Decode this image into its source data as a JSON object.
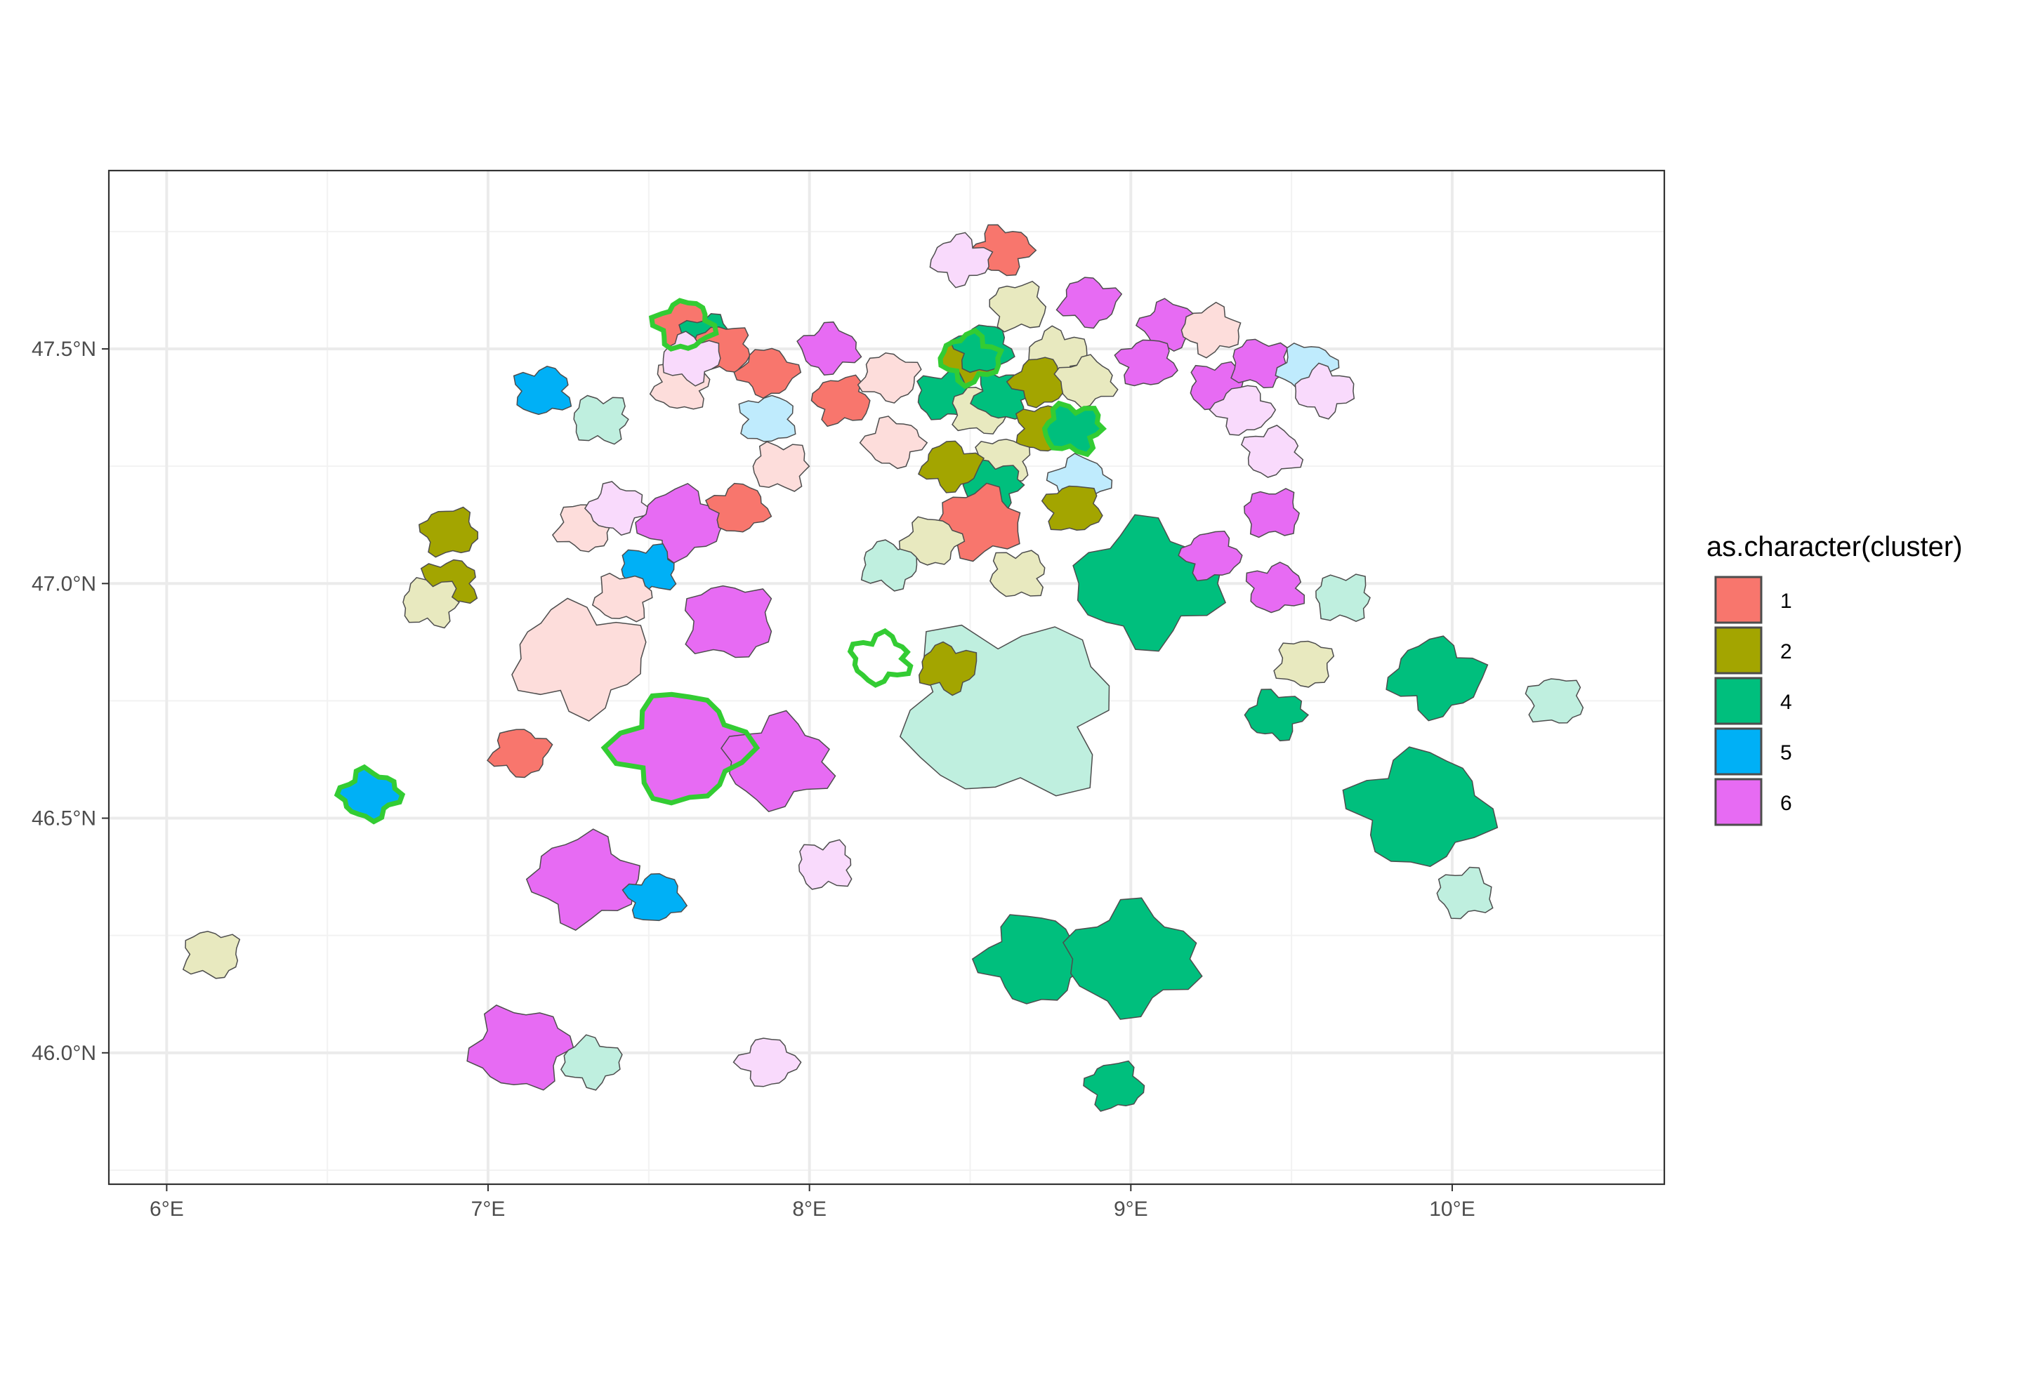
{
  "map": {
    "x_axis": {
      "ticks": [
        "6°E",
        "7°E",
        "8°E",
        "9°E",
        "10°E"
      ],
      "values": [
        6,
        7,
        8,
        9,
        10
      ]
    },
    "y_axis": {
      "ticks": [
        "47.5°N",
        "47.0°N",
        "46.5°N",
        "46.0°N"
      ],
      "values": [
        47.5,
        47.0,
        46.5,
        46.0
      ]
    },
    "x_range": [
      5.82,
      10.66
    ],
    "y_range": [
      45.72,
      47.88
    ],
    "grid": true,
    "highlight_color": "#33cc33"
  },
  "legend": {
    "title": "as.character(cluster)",
    "placement": "right",
    "items": [
      {
        "label": "1",
        "color": "#F8766D"
      },
      {
        "label": "2",
        "color": "#A3A500"
      },
      {
        "label": "4",
        "color": "#00BF7D"
      },
      {
        "label": "5",
        "color": "#00B0F6"
      },
      {
        "label": "6",
        "color": "#E76BF3"
      }
    ]
  },
  "chart_data": {
    "type": "choropleth",
    "legend_title": "as.character(cluster)",
    "clusters": [
      "1",
      "2",
      "4",
      "5",
      "6"
    ],
    "cluster_colors": {
      "1": "#F8766D",
      "2": "#A3A500",
      "4": "#00BF7D",
      "5": "#00B0F6",
      "6": "#E76BF3"
    },
    "regions": [
      {
        "id": "r01",
        "cluster": "1",
        "shade": "solid",
        "lon": 8.6,
        "lat": 47.71
      },
      {
        "id": "r02",
        "cluster": "6",
        "shade": "faded",
        "lon": 8.47,
        "lat": 47.69
      },
      {
        "id": "r03",
        "cluster": "1",
        "shade": "solid",
        "lon": 7.61,
        "lat": 47.55,
        "highlight": true
      },
      {
        "id": "r04",
        "cluster": "4",
        "shade": "solid",
        "lon": 7.68,
        "lat": 47.52
      },
      {
        "id": "r05",
        "cluster": "1",
        "shade": "solid",
        "lon": 7.73,
        "lat": 47.5
      },
      {
        "id": "r06",
        "cluster": "1",
        "shade": "faded",
        "lon": 7.6,
        "lat": 47.42
      },
      {
        "id": "r07",
        "cluster": "6",
        "shade": "faded",
        "lon": 7.63,
        "lat": 47.48
      },
      {
        "id": "r08",
        "cluster": "1",
        "shade": "solid",
        "lon": 7.87,
        "lat": 47.45
      },
      {
        "id": "r09",
        "cluster": "6",
        "shade": "solid",
        "lon": 8.06,
        "lat": 47.5
      },
      {
        "id": "r10",
        "cluster": "1",
        "shade": "solid",
        "lon": 8.1,
        "lat": 47.39
      },
      {
        "id": "r11",
        "cluster": "5",
        "shade": "faded",
        "lon": 7.87,
        "lat": 47.35
      },
      {
        "id": "r12",
        "cluster": "1",
        "shade": "faded",
        "lon": 7.91,
        "lat": 47.25
      },
      {
        "id": "r13",
        "cluster": "1",
        "shade": "faded",
        "lon": 8.25,
        "lat": 47.44
      },
      {
        "id": "r14",
        "cluster": "1",
        "shade": "faded",
        "lon": 8.26,
        "lat": 47.3
      },
      {
        "id": "r15",
        "cluster": "2",
        "shade": "solid",
        "lon": 8.5,
        "lat": 47.48,
        "highlight": true
      },
      {
        "id": "r16",
        "cluster": "4",
        "shade": "solid",
        "lon": 8.54,
        "lat": 47.5
      },
      {
        "id": "r17",
        "cluster": "4",
        "shade": "solid",
        "lon": 8.42,
        "lat": 47.4
      },
      {
        "id": "r18",
        "cluster": "2",
        "shade": "faded",
        "lon": 8.53,
        "lat": 47.37
      },
      {
        "id": "r19",
        "cluster": "4",
        "shade": "solid",
        "lon": 8.6,
        "lat": 47.4
      },
      {
        "id": "r20",
        "cluster": "2",
        "shade": "faded",
        "lon": 8.77,
        "lat": 47.49
      },
      {
        "id": "r21",
        "cluster": "2",
        "shade": "solid",
        "lon": 8.72,
        "lat": 47.43
      },
      {
        "id": "r22",
        "cluster": "2",
        "shade": "faded",
        "lon": 8.86,
        "lat": 47.43
      },
      {
        "id": "r23",
        "cluster": "2",
        "shade": "faded",
        "lon": 8.65,
        "lat": 47.59
      },
      {
        "id": "r24",
        "cluster": "2",
        "shade": "solid",
        "lon": 8.73,
        "lat": 47.33
      },
      {
        "id": "r25",
        "cluster": "4",
        "shade": "solid",
        "lon": 8.82,
        "lat": 47.33,
        "highlight": true
      },
      {
        "id": "r26",
        "cluster": "6",
        "shade": "solid",
        "lon": 8.87,
        "lat": 47.6
      },
      {
        "id": "r27",
        "cluster": "6",
        "shade": "solid",
        "lon": 9.12,
        "lat": 47.55
      },
      {
        "id": "r28",
        "cluster": "1",
        "shade": "faded",
        "lon": 9.25,
        "lat": 47.54
      },
      {
        "id": "r29",
        "cluster": "6",
        "shade": "solid",
        "lon": 9.05,
        "lat": 47.47
      },
      {
        "id": "r30",
        "cluster": "6",
        "shade": "solid",
        "lon": 9.27,
        "lat": 47.42
      },
      {
        "id": "r31",
        "cluster": "6",
        "shade": "solid",
        "lon": 9.4,
        "lat": 47.47
      },
      {
        "id": "r32",
        "cluster": "5",
        "shade": "faded",
        "lon": 9.55,
        "lat": 47.46
      },
      {
        "id": "r33",
        "cluster": "6",
        "shade": "faded",
        "lon": 9.6,
        "lat": 47.41
      },
      {
        "id": "r34",
        "cluster": "6",
        "shade": "faded",
        "lon": 9.35,
        "lat": 47.37
      },
      {
        "id": "r35",
        "cluster": "6",
        "shade": "faded",
        "lon": 9.44,
        "lat": 47.28
      },
      {
        "id": "r36",
        "cluster": "6",
        "shade": "solid",
        "lon": 9.44,
        "lat": 47.15
      },
      {
        "id": "r37",
        "cluster": "2",
        "shade": "faded",
        "lon": 8.6,
        "lat": 47.26
      },
      {
        "id": "r38",
        "cluster": "4",
        "shade": "solid",
        "lon": 8.57,
        "lat": 47.21
      },
      {
        "id": "r39",
        "cluster": "2",
        "shade": "solid",
        "lon": 8.44,
        "lat": 47.25
      },
      {
        "id": "r40",
        "cluster": "5",
        "shade": "faded",
        "lon": 8.84,
        "lat": 47.22
      },
      {
        "id": "r41",
        "cluster": "1",
        "shade": "solid",
        "lon": 8.53,
        "lat": 47.13
      },
      {
        "id": "r42",
        "cluster": "2",
        "shade": "solid",
        "lon": 8.82,
        "lat": 47.16
      },
      {
        "id": "r43",
        "cluster": "2",
        "shade": "faded",
        "lon": 8.65,
        "lat": 47.02
      },
      {
        "id": "r44",
        "cluster": "4",
        "shade": "faded",
        "lon": 8.25,
        "lat": 47.04
      },
      {
        "id": "r45",
        "cluster": "2",
        "shade": "faded",
        "lon": 8.38,
        "lat": 47.09
      },
      {
        "id": "r46",
        "cluster": "4",
        "shade": "solid",
        "lon": 9.05,
        "lat": 47.0
      },
      {
        "id": "r47",
        "cluster": "6",
        "shade": "solid",
        "lon": 9.25,
        "lat": 47.06
      },
      {
        "id": "r48",
        "cluster": "6",
        "shade": "solid",
        "lon": 9.45,
        "lat": 46.99
      },
      {
        "id": "r49",
        "cluster": "4",
        "shade": "faded",
        "lon": 9.66,
        "lat": 46.97
      },
      {
        "id": "r50",
        "cluster": "2",
        "shade": "faded",
        "lon": 9.54,
        "lat": 46.83
      },
      {
        "id": "r51",
        "cluster": "4",
        "shade": "solid",
        "lon": 9.45,
        "lat": 46.72
      },
      {
        "id": "r52",
        "cluster": "4",
        "shade": "solid",
        "lon": 9.95,
        "lat": 46.8
      },
      {
        "id": "r53",
        "cluster": "4",
        "shade": "solid",
        "lon": 9.9,
        "lat": 46.52
      },
      {
        "id": "r54",
        "cluster": "4",
        "shade": "faded",
        "lon": 10.04,
        "lat": 46.34
      },
      {
        "id": "r55",
        "cluster": "4",
        "shade": "faded",
        "lon": 10.32,
        "lat": 46.75
      },
      {
        "id": "r56",
        "cluster": "4",
        "shade": "faded",
        "lon": 8.62,
        "lat": 46.73
      },
      {
        "id": "r57",
        "cluster": "2",
        "shade": "solid",
        "lon": 8.43,
        "lat": 46.82
      },
      {
        "id": "r58",
        "cluster": "4",
        "shade": "solid",
        "lon": 8.7,
        "lat": 46.2
      },
      {
        "id": "r59",
        "cluster": "4",
        "shade": "solid",
        "lon": 9.0,
        "lat": 46.2
      },
      {
        "id": "r60",
        "cluster": "4",
        "shade": "solid",
        "lon": 8.95,
        "lat": 45.93
      },
      {
        "id": "r61",
        "cluster": "5",
        "shade": "solid",
        "lon": 7.17,
        "lat": 47.41
      },
      {
        "id": "r62",
        "cluster": "4",
        "shade": "faded",
        "lon": 7.35,
        "lat": 47.35
      },
      {
        "id": "r63",
        "cluster": "1",
        "shade": "faded",
        "lon": 7.3,
        "lat": 47.12
      },
      {
        "id": "r64",
        "cluster": "6",
        "shade": "faded",
        "lon": 7.4,
        "lat": 47.16
      },
      {
        "id": "r65",
        "cluster": "6",
        "shade": "solid",
        "lon": 7.6,
        "lat": 47.13
      },
      {
        "id": "r66",
        "cluster": "1",
        "shade": "solid",
        "lon": 7.78,
        "lat": 47.16
      },
      {
        "id": "r67",
        "cluster": "5",
        "shade": "solid",
        "lon": 7.5,
        "lat": 47.03
      },
      {
        "id": "r68",
        "cluster": "6",
        "shade": "solid",
        "lon": 7.75,
        "lat": 46.92
      },
      {
        "id": "r69",
        "cluster": "1",
        "shade": "faded",
        "lon": 7.42,
        "lat": 46.97
      },
      {
        "id": "r70",
        "cluster": "1",
        "shade": "faded",
        "lon": 7.28,
        "lat": 46.84
      },
      {
        "id": "r71",
        "cluster": "6",
        "shade": "solid",
        "lon": 7.6,
        "lat": 46.65,
        "highlight": true
      },
      {
        "id": "r72",
        "cluster": "6",
        "shade": "solid",
        "lon": 7.9,
        "lat": 46.62
      },
      {
        "id": "r73",
        "cluster": "2",
        "shade": "solid",
        "lon": 6.88,
        "lat": 47.11
      },
      {
        "id": "r74",
        "cluster": "2",
        "shade": "solid",
        "lon": 6.88,
        "lat": 47.0
      },
      {
        "id": "r75",
        "cluster": "2",
        "shade": "faded",
        "lon": 6.82,
        "lat": 46.96
      },
      {
        "id": "r76",
        "cluster": "1",
        "shade": "solid",
        "lon": 7.1,
        "lat": 46.64
      },
      {
        "id": "r77",
        "cluster": "5",
        "shade": "solid",
        "lon": 6.63,
        "lat": 46.55,
        "highlight": true
      },
      {
        "id": "r78",
        "cluster": "6",
        "shade": "solid",
        "lon": 7.3,
        "lat": 46.37
      },
      {
        "id": "r79",
        "cluster": "5",
        "shade": "solid",
        "lon": 7.52,
        "lat": 46.33
      },
      {
        "id": "r80",
        "cluster": "6",
        "shade": "faded",
        "lon": 8.05,
        "lat": 46.4
      },
      {
        "id": "r81",
        "cluster": "2",
        "shade": "faded",
        "lon": 6.14,
        "lat": 46.21
      },
      {
        "id": "r82",
        "cluster": "6",
        "shade": "solid",
        "lon": 7.1,
        "lat": 46.01
      },
      {
        "id": "r83",
        "cluster": "4",
        "shade": "faded",
        "lon": 7.32,
        "lat": 45.98
      },
      {
        "id": "r84",
        "cluster": "6",
        "shade": "faded",
        "lon": 7.87,
        "lat": 45.98
      },
      {
        "id": "r85",
        "cluster": "none",
        "lon": 8.22,
        "lat": 46.84,
        "highlight": true
      }
    ]
  }
}
